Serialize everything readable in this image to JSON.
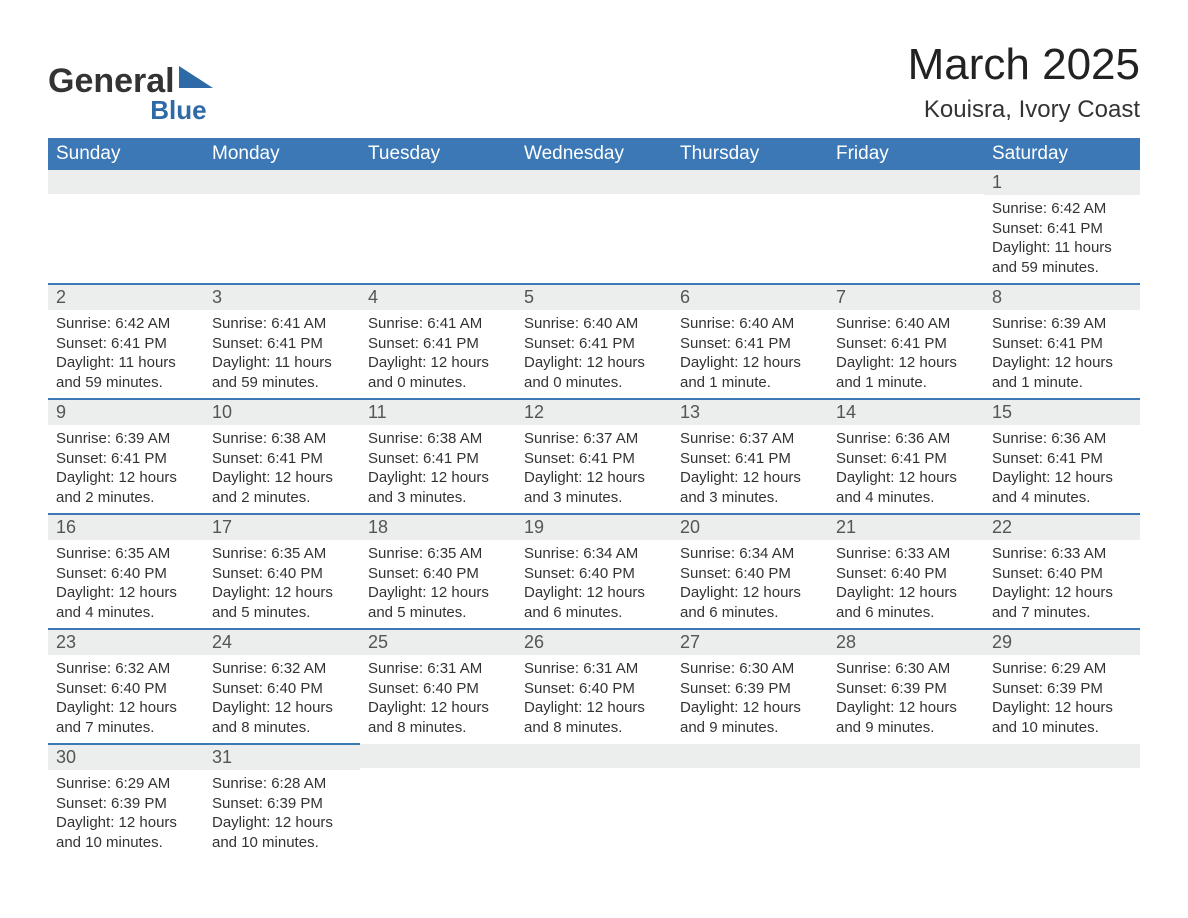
{
  "logo": {
    "line1": "General",
    "line2": "Blue",
    "triangle_color": "#2f6aa8"
  },
  "title": "March 2025",
  "location": "Kouisra, Ivory Coast",
  "colors": {
    "header_bg": "#3b78b5",
    "header_fg": "#ffffff",
    "daynum_bg": "#eceded",
    "row_divider": "#3b78b5",
    "text": "#333333"
  },
  "weekdays": [
    "Sunday",
    "Monday",
    "Tuesday",
    "Wednesday",
    "Thursday",
    "Friday",
    "Saturday"
  ],
  "weeks": [
    [
      null,
      null,
      null,
      null,
      null,
      null,
      {
        "n": "1",
        "sunrise": "Sunrise: 6:42 AM",
        "sunset": "Sunset: 6:41 PM",
        "daylight": "Daylight: 11 hours and 59 minutes."
      }
    ],
    [
      {
        "n": "2",
        "sunrise": "Sunrise: 6:42 AM",
        "sunset": "Sunset: 6:41 PM",
        "daylight": "Daylight: 11 hours and 59 minutes."
      },
      {
        "n": "3",
        "sunrise": "Sunrise: 6:41 AM",
        "sunset": "Sunset: 6:41 PM",
        "daylight": "Daylight: 11 hours and 59 minutes."
      },
      {
        "n": "4",
        "sunrise": "Sunrise: 6:41 AM",
        "sunset": "Sunset: 6:41 PM",
        "daylight": "Daylight: 12 hours and 0 minutes."
      },
      {
        "n": "5",
        "sunrise": "Sunrise: 6:40 AM",
        "sunset": "Sunset: 6:41 PM",
        "daylight": "Daylight: 12 hours and 0 minutes."
      },
      {
        "n": "6",
        "sunrise": "Sunrise: 6:40 AM",
        "sunset": "Sunset: 6:41 PM",
        "daylight": "Daylight: 12 hours and 1 minute."
      },
      {
        "n": "7",
        "sunrise": "Sunrise: 6:40 AM",
        "sunset": "Sunset: 6:41 PM",
        "daylight": "Daylight: 12 hours and 1 minute."
      },
      {
        "n": "8",
        "sunrise": "Sunrise: 6:39 AM",
        "sunset": "Sunset: 6:41 PM",
        "daylight": "Daylight: 12 hours and 1 minute."
      }
    ],
    [
      {
        "n": "9",
        "sunrise": "Sunrise: 6:39 AM",
        "sunset": "Sunset: 6:41 PM",
        "daylight": "Daylight: 12 hours and 2 minutes."
      },
      {
        "n": "10",
        "sunrise": "Sunrise: 6:38 AM",
        "sunset": "Sunset: 6:41 PM",
        "daylight": "Daylight: 12 hours and 2 minutes."
      },
      {
        "n": "11",
        "sunrise": "Sunrise: 6:38 AM",
        "sunset": "Sunset: 6:41 PM",
        "daylight": "Daylight: 12 hours and 3 minutes."
      },
      {
        "n": "12",
        "sunrise": "Sunrise: 6:37 AM",
        "sunset": "Sunset: 6:41 PM",
        "daylight": "Daylight: 12 hours and 3 minutes."
      },
      {
        "n": "13",
        "sunrise": "Sunrise: 6:37 AM",
        "sunset": "Sunset: 6:41 PM",
        "daylight": "Daylight: 12 hours and 3 minutes."
      },
      {
        "n": "14",
        "sunrise": "Sunrise: 6:36 AM",
        "sunset": "Sunset: 6:41 PM",
        "daylight": "Daylight: 12 hours and 4 minutes."
      },
      {
        "n": "15",
        "sunrise": "Sunrise: 6:36 AM",
        "sunset": "Sunset: 6:41 PM",
        "daylight": "Daylight: 12 hours and 4 minutes."
      }
    ],
    [
      {
        "n": "16",
        "sunrise": "Sunrise: 6:35 AM",
        "sunset": "Sunset: 6:40 PM",
        "daylight": "Daylight: 12 hours and 4 minutes."
      },
      {
        "n": "17",
        "sunrise": "Sunrise: 6:35 AM",
        "sunset": "Sunset: 6:40 PM",
        "daylight": "Daylight: 12 hours and 5 minutes."
      },
      {
        "n": "18",
        "sunrise": "Sunrise: 6:35 AM",
        "sunset": "Sunset: 6:40 PM",
        "daylight": "Daylight: 12 hours and 5 minutes."
      },
      {
        "n": "19",
        "sunrise": "Sunrise: 6:34 AM",
        "sunset": "Sunset: 6:40 PM",
        "daylight": "Daylight: 12 hours and 6 minutes."
      },
      {
        "n": "20",
        "sunrise": "Sunrise: 6:34 AM",
        "sunset": "Sunset: 6:40 PM",
        "daylight": "Daylight: 12 hours and 6 minutes."
      },
      {
        "n": "21",
        "sunrise": "Sunrise: 6:33 AM",
        "sunset": "Sunset: 6:40 PM",
        "daylight": "Daylight: 12 hours and 6 minutes."
      },
      {
        "n": "22",
        "sunrise": "Sunrise: 6:33 AM",
        "sunset": "Sunset: 6:40 PM",
        "daylight": "Daylight: 12 hours and 7 minutes."
      }
    ],
    [
      {
        "n": "23",
        "sunrise": "Sunrise: 6:32 AM",
        "sunset": "Sunset: 6:40 PM",
        "daylight": "Daylight: 12 hours and 7 minutes."
      },
      {
        "n": "24",
        "sunrise": "Sunrise: 6:32 AM",
        "sunset": "Sunset: 6:40 PM",
        "daylight": "Daylight: 12 hours and 8 minutes."
      },
      {
        "n": "25",
        "sunrise": "Sunrise: 6:31 AM",
        "sunset": "Sunset: 6:40 PM",
        "daylight": "Daylight: 12 hours and 8 minutes."
      },
      {
        "n": "26",
        "sunrise": "Sunrise: 6:31 AM",
        "sunset": "Sunset: 6:40 PM",
        "daylight": "Daylight: 12 hours and 8 minutes."
      },
      {
        "n": "27",
        "sunrise": "Sunrise: 6:30 AM",
        "sunset": "Sunset: 6:39 PM",
        "daylight": "Daylight: 12 hours and 9 minutes."
      },
      {
        "n": "28",
        "sunrise": "Sunrise: 6:30 AM",
        "sunset": "Sunset: 6:39 PM",
        "daylight": "Daylight: 12 hours and 9 minutes."
      },
      {
        "n": "29",
        "sunrise": "Sunrise: 6:29 AM",
        "sunset": "Sunset: 6:39 PM",
        "daylight": "Daylight: 12 hours and 10 minutes."
      }
    ],
    [
      {
        "n": "30",
        "sunrise": "Sunrise: 6:29 AM",
        "sunset": "Sunset: 6:39 PM",
        "daylight": "Daylight: 12 hours and 10 minutes."
      },
      {
        "n": "31",
        "sunrise": "Sunrise: 6:28 AM",
        "sunset": "Sunset: 6:39 PM",
        "daylight": "Daylight: 12 hours and 10 minutes."
      },
      null,
      null,
      null,
      null,
      null
    ]
  ]
}
